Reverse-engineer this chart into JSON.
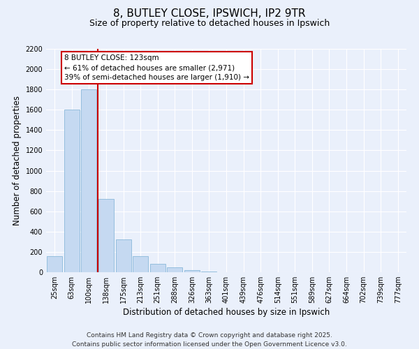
{
  "title": "8, BUTLEY CLOSE, IPSWICH, IP2 9TR",
  "subtitle": "Size of property relative to detached houses in Ipswich",
  "xlabel": "Distribution of detached houses by size in Ipswich",
  "ylabel": "Number of detached properties",
  "bar_labels": [
    "25sqm",
    "63sqm",
    "100sqm",
    "138sqm",
    "175sqm",
    "213sqm",
    "251sqm",
    "288sqm",
    "326sqm",
    "363sqm",
    "401sqm",
    "439sqm",
    "476sqm",
    "514sqm",
    "551sqm",
    "589sqm",
    "627sqm",
    "664sqm",
    "702sqm",
    "739sqm",
    "777sqm"
  ],
  "bar_values": [
    160,
    1600,
    1800,
    720,
    325,
    160,
    85,
    45,
    18,
    8,
    0,
    0,
    0,
    0,
    0,
    0,
    0,
    0,
    0,
    0,
    0
  ],
  "bar_color": "#c5d9f1",
  "bar_edge_color": "#7bafd4",
  "ylim": [
    0,
    2200
  ],
  "yticks": [
    0,
    200,
    400,
    600,
    800,
    1000,
    1200,
    1400,
    1600,
    1800,
    2000,
    2200
  ],
  "vline_color": "#cc0000",
  "annotation_title": "8 BUTLEY CLOSE: 123sqm",
  "annotation_line1": "← 61% of detached houses are smaller (2,971)",
  "annotation_line2": "39% of semi-detached houses are larger (1,910) →",
  "annotation_box_color": "#ffffff",
  "annotation_box_edge": "#cc0000",
  "footer1": "Contains HM Land Registry data © Crown copyright and database right 2025.",
  "footer2": "Contains public sector information licensed under the Open Government Licence v3.0.",
  "bg_color": "#eaf0fb",
  "plot_bg_color": "#eaf0fb",
  "grid_color": "#ffffff",
  "title_fontsize": 11,
  "subtitle_fontsize": 9,
  "axis_label_fontsize": 8.5,
  "tick_fontsize": 7,
  "annotation_fontsize": 7.5,
  "footer_fontsize": 6.5
}
